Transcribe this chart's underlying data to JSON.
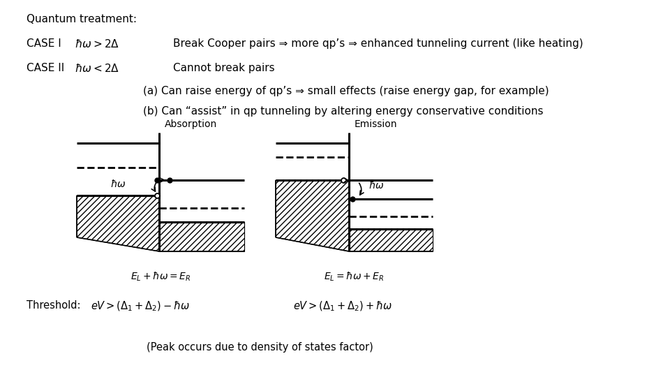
{
  "title": "Quantum treatment:",
  "case1_label": "CASE I",
  "case1_text": "Break Cooper pairs ⇒ more qp’s ⇒ enhanced tunneling current (like heating)",
  "case2_label": "CASE II",
  "case2_text": "Cannot break pairs",
  "case2a_text": "(a) Can raise energy of qp’s ⇒ small effects (raise energy gap, for example)",
  "case2b_text": "(b) Can “assist” in qp tunneling by altering energy conservative conditions",
  "abs_label": "Absorption",
  "em_label": "Emission",
  "eq_abs": "$E_L + \\hbar\\omega = E_R$",
  "eq_em": "$E_L = \\hbar\\omega + E_R$",
  "thresh_label": "Threshold:",
  "thresh_abs": "$eV > (\\Delta_1 + \\Delta_2) - \\hbar\\omega$",
  "thresh_em": "$eV > (\\Delta_1 + \\Delta_2) + \\hbar\\omega$",
  "peak_text": "(Peak occurs due to density of states factor)",
  "bg_color": "#ffffff"
}
